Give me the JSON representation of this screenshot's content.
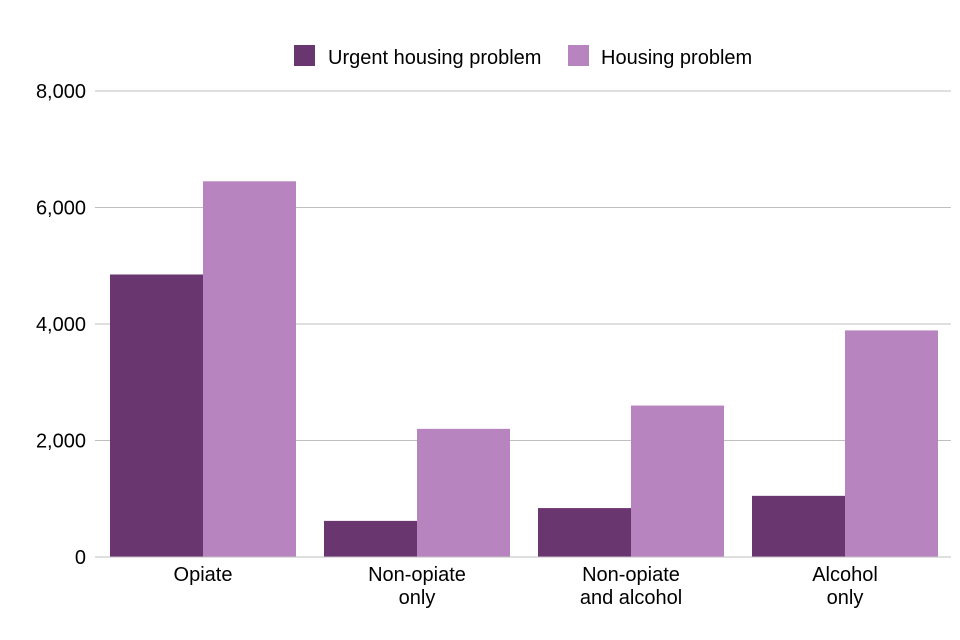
{
  "chart_data": {
    "type": "bar",
    "title": "",
    "xlabel": "",
    "ylabel": "",
    "categories": [
      [
        "Opiate"
      ],
      [
        "Non-opiate",
        "only"
      ],
      [
        "Non-opiate",
        "and alcohol"
      ],
      [
        "Alcohol",
        "only"
      ]
    ],
    "series": [
      {
        "name": "Urgent housing problem",
        "color": "#6a3670",
        "values": [
          4850,
          620,
          840,
          1050
        ]
      },
      {
        "name": "Housing problem",
        "color": "#b784bf",
        "values": [
          6450,
          2200,
          2600,
          3890
        ]
      }
    ],
    "ylim": [
      0,
      8000
    ],
    "yticks": [
      {
        "value": 0,
        "label": "0"
      },
      {
        "value": 2000,
        "label": "2,000"
      },
      {
        "value": 4000,
        "label": "4,000"
      },
      {
        "value": 6000,
        "label": "6,000"
      },
      {
        "value": 8000,
        "label": "8,000"
      }
    ],
    "grid": true,
    "legend_position": "top-center",
    "gridline_color": "#bfbfbf",
    "axis_color": "#bfbfbf"
  }
}
